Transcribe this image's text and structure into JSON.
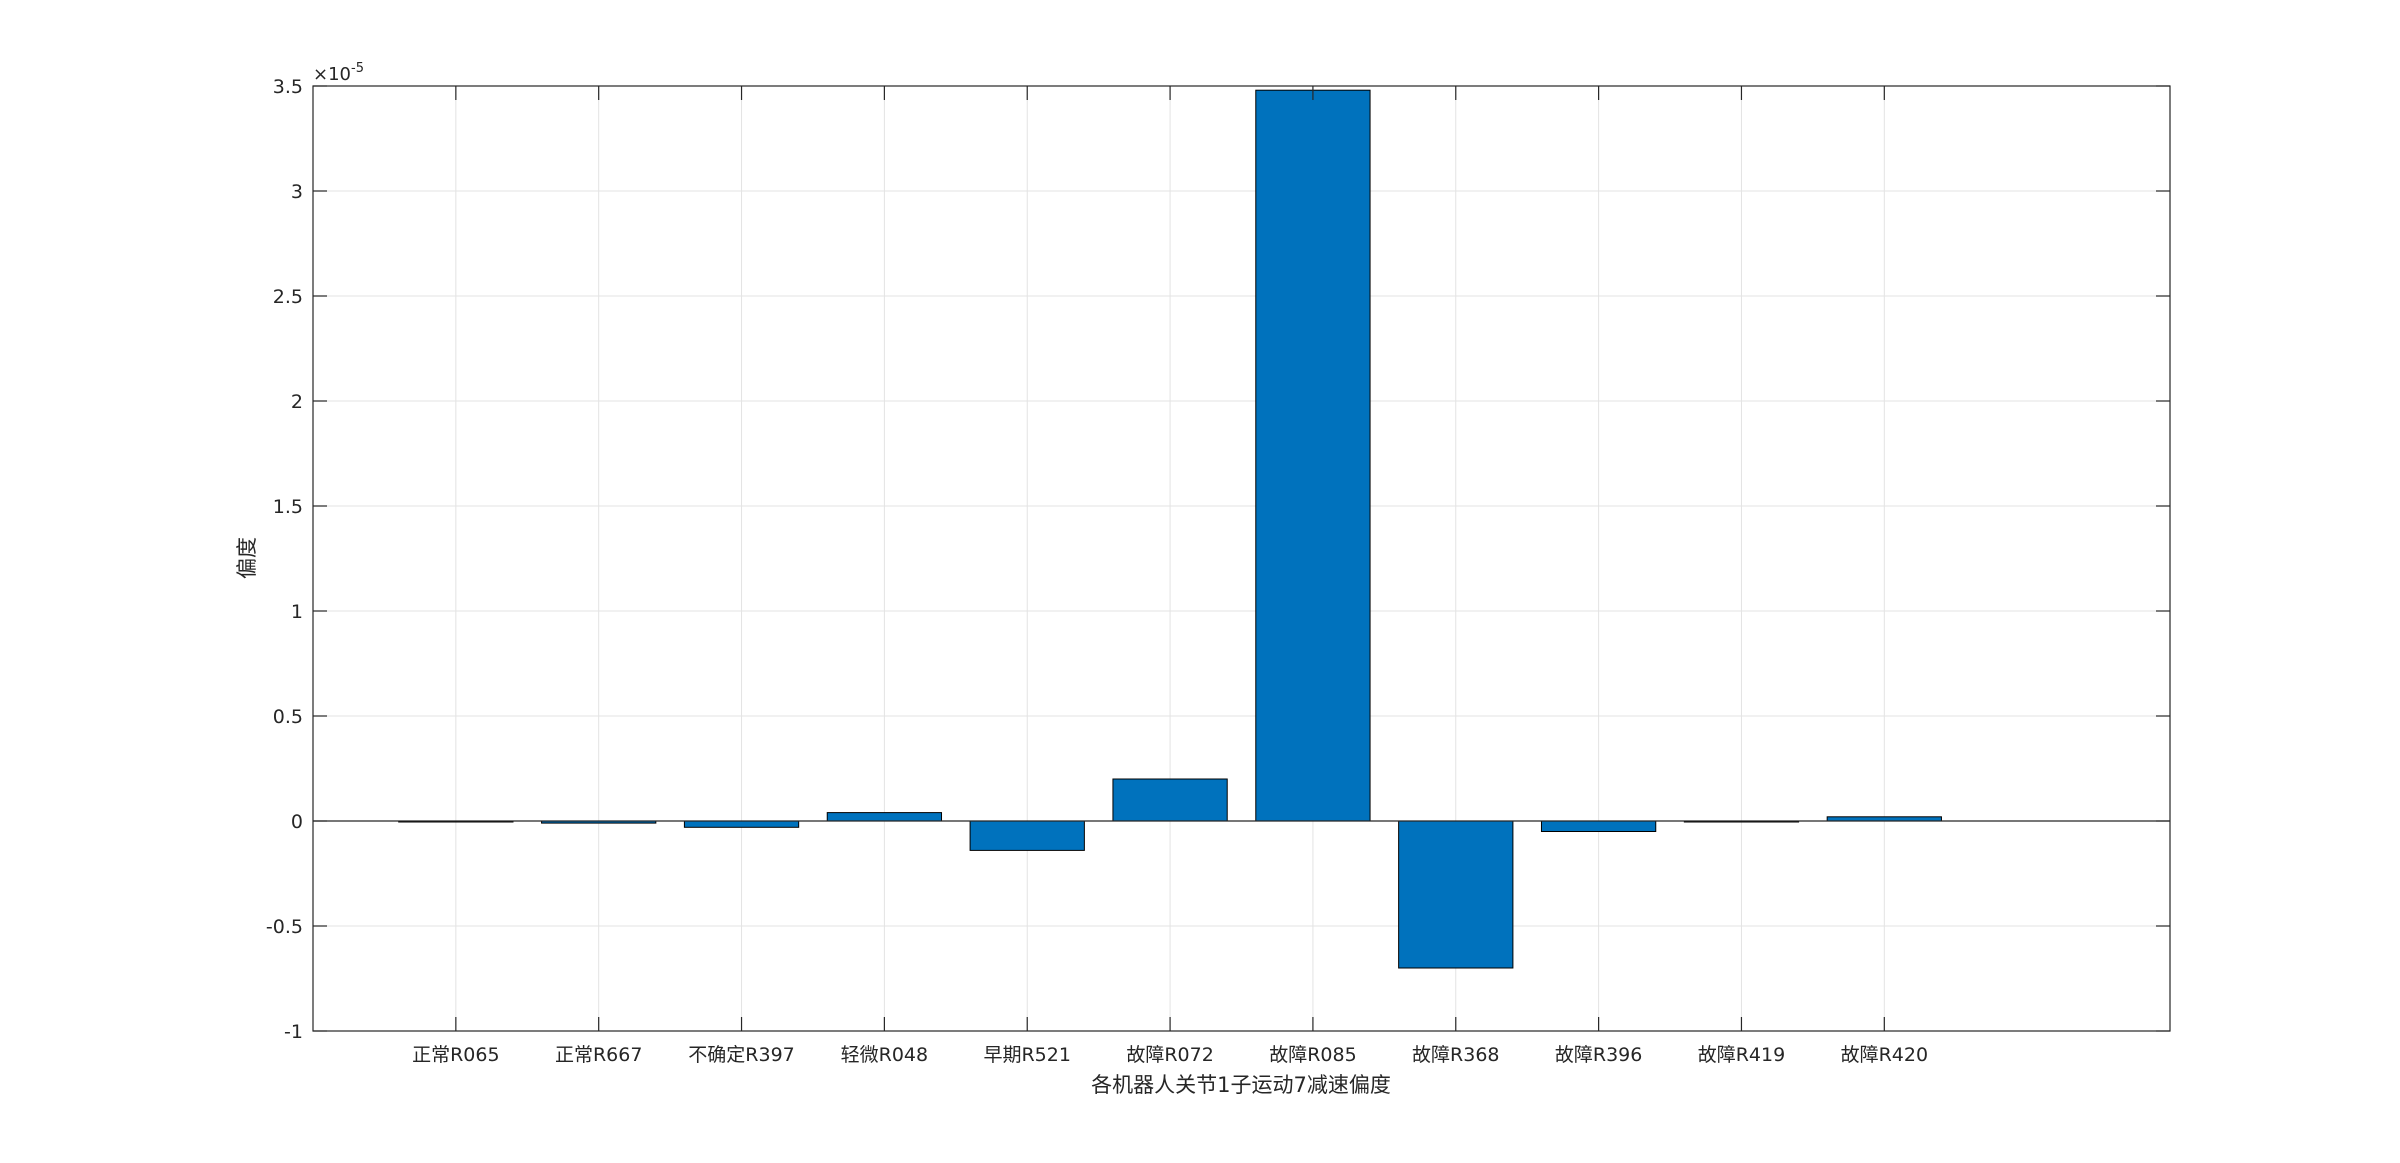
{
  "chart_data": {
    "type": "bar",
    "xlabel": "各机器人关节1子运动7减速偏度",
    "ylabel": "偏度",
    "y_exponent_label": "×10",
    "y_exponent_power": "-5",
    "categories": [
      "正常R065",
      "正常R667",
      "不确定R397",
      "轻微R048",
      "早期R521",
      "故障R072",
      "故障R085",
      "故障R368",
      "故障R396",
      "故障R419",
      "故障R420"
    ],
    "values": [
      0.0,
      -0.01,
      -0.03,
      0.04,
      -0.14,
      0.2,
      3.48,
      -0.7,
      -0.05,
      0.0,
      0.02
    ],
    "value_scale": "1e-5",
    "ylim": [
      -1,
      3.5
    ],
    "yticks": [
      -1,
      -0.5,
      0,
      0.5,
      1,
      1.5,
      2,
      2.5,
      3,
      3.5
    ],
    "ytick_labels": [
      "-1",
      "-0.5",
      "0",
      "0.5",
      "1",
      "1.5",
      "2",
      "2.5",
      "3",
      "3.5"
    ],
    "grid": true,
    "bar_color": "#0072BD"
  }
}
